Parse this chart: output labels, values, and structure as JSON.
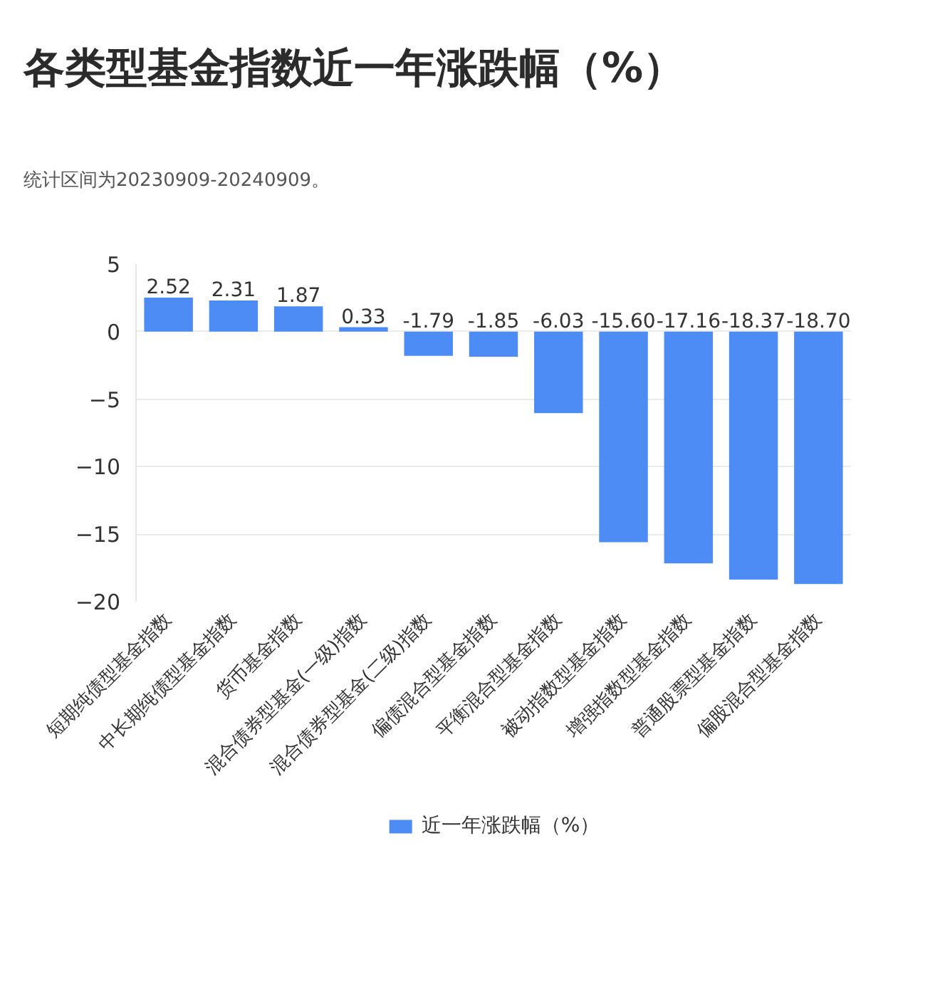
{
  "chart_data": {
    "type": "bar",
    "title": "各类型基金指数近一年涨跌幅（%）",
    "subtitle": "统计区间为20230909-20240909。",
    "categories": [
      "短期纯债型基金指数",
      "中长期纯债型基金指数",
      "货币基金指数",
      "混合债券型基金(一级)指数",
      "混合债券型基金(二级)指数",
      "偏债混合型基金指数",
      "平衡混合型基金指数",
      "被动指数型基金指数",
      "增强指数型基金指数",
      "普通股票型基金指数",
      "偏股混合型基金指数"
    ],
    "series": [
      {
        "name": "近一年涨跌幅（%）",
        "color": "#4d8bf5",
        "values": [
          2.52,
          2.31,
          1.87,
          0.33,
          -1.79,
          -1.85,
          -6.03,
          -15.6,
          -17.16,
          -18.37,
          -18.7
        ],
        "value_labels": [
          "2.52",
          "2.31",
          "1.87",
          "0.33",
          "-1.79",
          "-1.85",
          "-6.03",
          "-15.60",
          "-17.16",
          "-18.37",
          "-18.70"
        ]
      }
    ],
    "ylim": [
      -20,
      5
    ],
    "yticks": [
      -20,
      -15,
      -10,
      -5,
      0,
      5
    ],
    "grid": "y",
    "legend": "bottom"
  }
}
